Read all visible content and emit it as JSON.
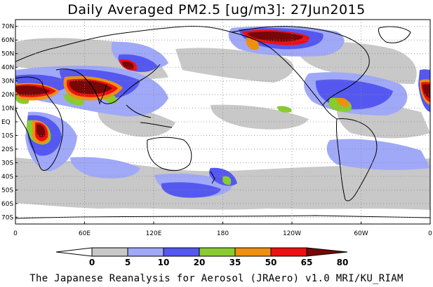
{
  "title": "Daily Averaged PM2.5 [ug/m3]: 27Jun2015",
  "credit": "The Japanese Reanalysis for Aerosol (JRAero) v1.0 MRI/KU_RIAM",
  "map": {
    "projection": "equirectangular",
    "lon_range": [
      0,
      360
    ],
    "lat_range": [
      -75,
      75
    ],
    "lat_labels": [
      "70N",
      "60N",
      "50N",
      "40N",
      "30N",
      "20N",
      "10N",
      "EQ",
      "10S",
      "20S",
      "30S",
      "40S",
      "50S",
      "60S",
      "70S"
    ],
    "lon_labels": [
      "0",
      "60E",
      "120E",
      "180",
      "120W",
      "60W",
      "0"
    ],
    "gridlines": "dotted",
    "colors": {
      "land_outline": "#000000",
      "grid": "#888888",
      "ocean": "#ffffff"
    }
  },
  "colorbar": {
    "thresholds": [
      "0",
      "5",
      "10",
      "20",
      "35",
      "50",
      "65",
      "80"
    ],
    "colors": [
      "#ffffff",
      "#c8c8c8",
      "#a0a8f8",
      "#5558f0",
      "#88cc30",
      "#f09010",
      "#ee1010",
      "#780808"
    ],
    "unit": "ug/m3"
  }
}
